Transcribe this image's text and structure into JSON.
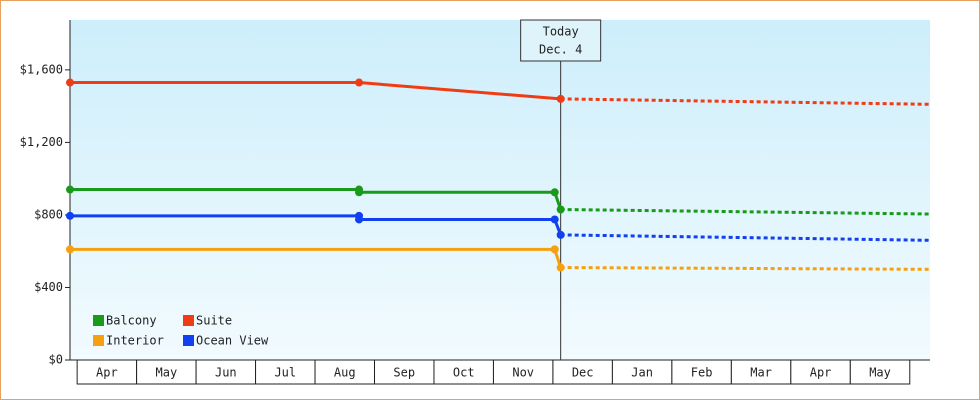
{
  "chart_data": {
    "type": "line",
    "categories": [
      "Apr",
      "May",
      "Jun",
      "Jul",
      "Aug",
      "Sep",
      "Oct",
      "Nov",
      "Dec",
      "Jan",
      "Feb",
      "Mar",
      "Apr",
      "May"
    ],
    "xlim": [
      -0.12,
      14.34
    ],
    "ylim": [
      0,
      1875
    ],
    "yticks": [
      {
        "value": 0,
        "label": "$0"
      },
      {
        "value": 400,
        "label": "$400"
      },
      {
        "value": 800,
        "label": "$800"
      },
      {
        "value": 1200,
        "label": "$1,200"
      },
      {
        "value": 1600,
        "label": "$1,600"
      }
    ],
    "annotation": {
      "text": [
        "Today",
        "Dec. 4"
      ],
      "x": 8.13
    },
    "series": [
      {
        "name": "Balcony",
        "color": "#1a9a1a",
        "x": [
          -0.12,
          4.74,
          4.74,
          8.03,
          8.13,
          14.34
        ],
        "values": [
          940,
          940,
          925,
          925,
          830,
          805
        ]
      },
      {
        "name": "Suite",
        "color": "#f03c14",
        "x": [
          -0.12,
          4.74,
          8.13,
          14.34
        ],
        "values": [
          1530,
          1530,
          1440,
          1410
        ]
      },
      {
        "name": "Interior",
        "color": "#f5a010",
        "x": [
          -0.12,
          8.03,
          8.13,
          14.34
        ],
        "values": [
          610,
          610,
          510,
          500
        ]
      },
      {
        "name": "Ocean View",
        "color": "#1040f0",
        "x": [
          -0.12,
          4.74,
          4.74,
          8.03,
          8.13,
          14.34
        ],
        "values": [
          795,
          795,
          775,
          775,
          690,
          660
        ]
      }
    ]
  }
}
